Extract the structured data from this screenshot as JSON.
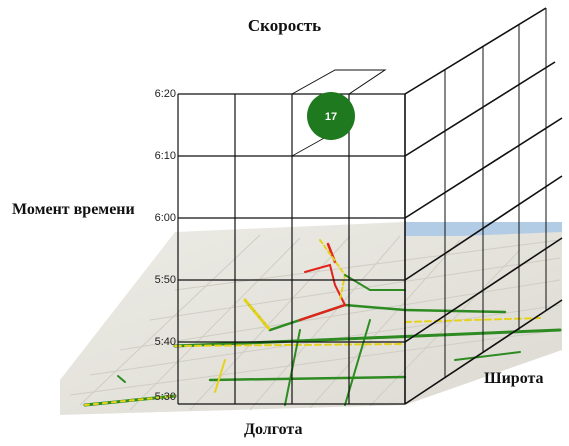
{
  "diagram": {
    "title": "Скорость",
    "y_axis_label": "Момент времени",
    "x_axis_label": "Долгота",
    "z_axis_label": "Широта",
    "time_ticks": [
      "6:20",
      "6:10",
      "6:00",
      "5:50",
      "5:40",
      "5:30"
    ],
    "marker": {
      "value": "17",
      "color": "#1f7a1f"
    },
    "colors": {
      "grid_line": "#111111",
      "map_background": "#e8e6df",
      "road_slow": "#e0241b",
      "road_medium": "#e7d21a",
      "road_fast": "#2e8b22",
      "water": "#a9c8e8"
    }
  }
}
